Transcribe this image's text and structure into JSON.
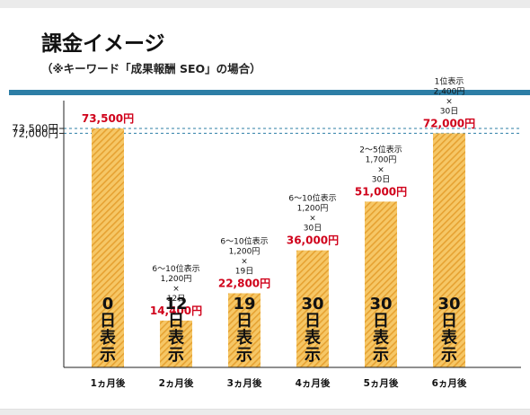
{
  "title": "課金イメージ",
  "subtitle": "（※キーワード「成果報酬 SEO」の場合）",
  "colors": {
    "bar_fill": "#f6c766",
    "bar_hatch": "#e6a232",
    "value_label": "#d0021b",
    "dashed_line": "#2d7ea6",
    "top_bar": "#2d7ea6"
  },
  "chart_data": {
    "type": "bar",
    "categories": [
      "1ヵ月後",
      "2ヵ月後",
      "3ヵ月後",
      "4ヵ月後",
      "5ヵ月後",
      "6ヵ月後"
    ],
    "values": [
      73500,
      14400,
      22800,
      36000,
      51000,
      72000
    ],
    "value_labels": [
      "73,500円",
      "14,400円",
      "22,800円",
      "36,000円",
      "51,000円",
      "72,000円"
    ],
    "bar_labels": [
      "0日表示",
      "12日表示",
      "19日表示",
      "30日表示",
      "30日表示",
      "30日表示"
    ],
    "annotations": [
      [],
      [
        "6〜10位表示",
        "1,200円",
        "×",
        "12日"
      ],
      [
        "6〜10位表示",
        "1,200円",
        "×",
        "19日"
      ],
      [
        "6〜10位表示",
        "1,200円",
        "×",
        "30日"
      ],
      [
        "2〜5位表示",
        "1,700円",
        "×",
        "30日"
      ],
      [
        "1位表示",
        "2,400円",
        "×",
        "30日"
      ]
    ],
    "y_ticks": [
      {
        "value": 73500,
        "label": "73,500円"
      },
      {
        "value": 72000,
        "label": "72,000円"
      }
    ],
    "reference_lines": [
      73500,
      72000
    ],
    "ylim": [
      0,
      73500
    ],
    "grid": false,
    "legend": "none"
  }
}
